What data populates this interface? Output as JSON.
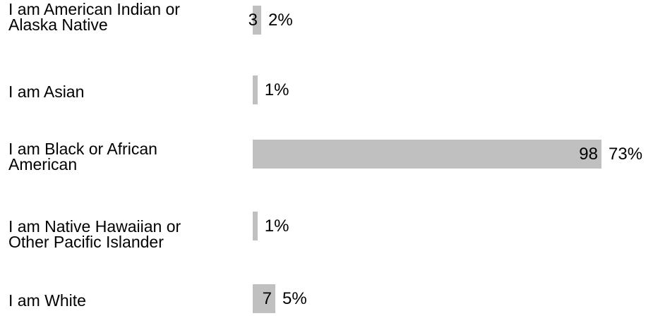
{
  "chart_data": {
    "type": "bar",
    "orientation": "horizontal",
    "categories": [
      "I am American Indian or\nAlaska Native",
      "I am Asian",
      "I am Black or African\nAmerican",
      "I am Native Hawaiian or\nOther Pacific Islander",
      "I am White"
    ],
    "counts": [
      "3",
      "",
      "98",
      "",
      "7"
    ],
    "percent_labels": [
      "2%",
      "1%",
      "73%",
      "1%",
      "5%"
    ],
    "values": [
      2,
      1,
      73,
      1,
      5
    ],
    "xlim": [
      0,
      73
    ],
    "grid": false,
    "legend": "none",
    "bar_color": "#c0c0c0"
  }
}
